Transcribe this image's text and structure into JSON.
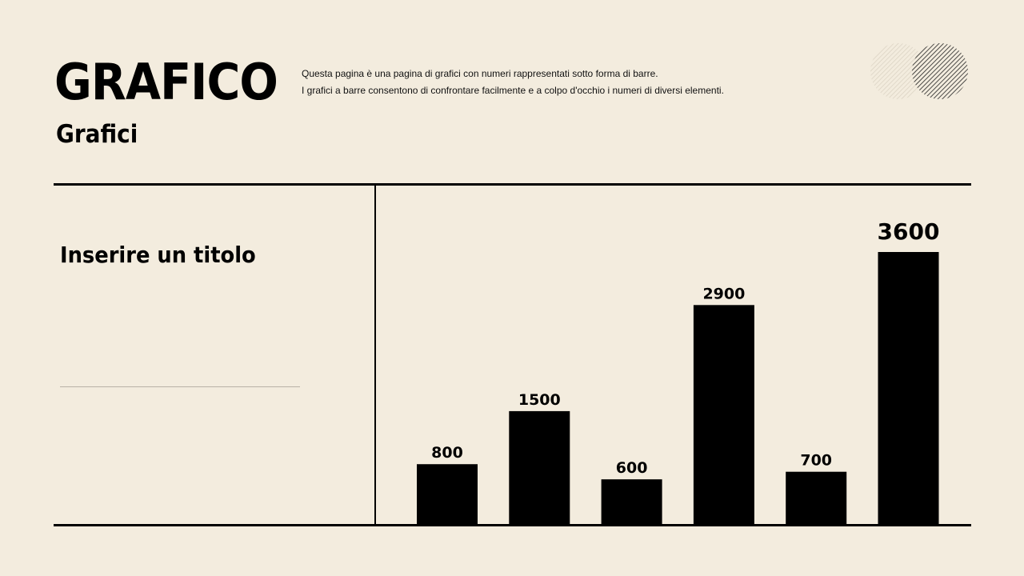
{
  "header": {
    "title": "GRAFICO",
    "subtitle": "Grafici",
    "description": [
      "Questa pagina è una pagina di grafici con numeri rappresentati sotto forma di barre.",
      "I grafici a barre consentono di confrontare facilmente e a colpo d'occhio i numeri di diversi elementi."
    ]
  },
  "panel": {
    "title": "Inserire un titolo"
  },
  "colors": {
    "background": "#f3ecde",
    "bars": "#000000"
  },
  "chart_data": {
    "type": "bar",
    "values": [
      800,
      1500,
      600,
      2900,
      700,
      3600
    ],
    "data_labels": true,
    "ylim": [
      0,
      3600
    ],
    "grid": false,
    "title": "",
    "xlabel": "",
    "ylabel": ""
  }
}
